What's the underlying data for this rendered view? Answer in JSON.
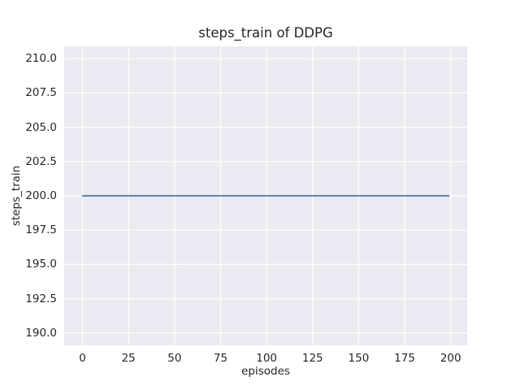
{
  "figure": {
    "background": "#ffffff",
    "text_color": "#262626"
  },
  "chart_data": {
    "type": "line",
    "title": "steps_train of DDPG",
    "xlabel": "episodes",
    "ylabel": "steps_train",
    "grid": true,
    "legend": false,
    "plot_bg": "#eaeaf2",
    "grid_color": "#ffffff",
    "xlim": [
      -9.95,
      208.95
    ],
    "ylim": [
      189.1,
      210.9
    ],
    "x_ticks": {
      "values": [
        0,
        25,
        50,
        75,
        100,
        125,
        150,
        175,
        200
      ],
      "labels": [
        "0",
        "25",
        "50",
        "75",
        "100",
        "125",
        "150",
        "175",
        "200"
      ]
    },
    "y_ticks": {
      "values": [
        210.0,
        207.5,
        205.0,
        202.5,
        200.0,
        197.5,
        195.0,
        192.5,
        190.0
      ],
      "labels": [
        "210.0",
        "207.5",
        "205.0",
        "202.5",
        "200.0",
        "197.5",
        "195.0",
        "192.5",
        "190.0"
      ]
    },
    "series": [
      {
        "name": "steps_train",
        "color": "#4c72b0",
        "line_width": 1.8,
        "x": [
          0,
          199
        ],
        "y": [
          200,
          200
        ]
      }
    ]
  }
}
